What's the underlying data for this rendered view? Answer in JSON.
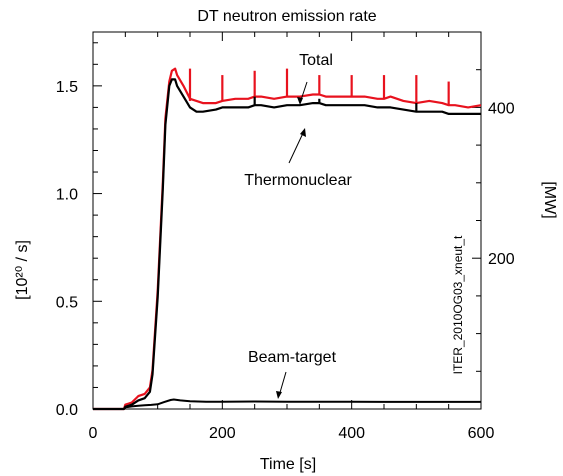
{
  "chart_data": {
    "type": "line",
    "title": "DT neutron emission rate",
    "xlabel": "Time [s]",
    "ylabel_left": "[10²⁰ / s]",
    "ylabel_right": "[MW]",
    "xlim": [
      0,
      600
    ],
    "ylim": [
      0,
      1.75
    ],
    "ylim_right_MW": [
      0,
      500
    ],
    "x_ticks": [
      "0",
      "200",
      "400",
      "600"
    ],
    "y_ticks_left": [
      "0.0",
      "0.5",
      "1.0",
      "1.5"
    ],
    "y_ticks_right": [
      "200",
      "400"
    ],
    "grid": false,
    "watermark": "ITER_2010OG03_xneut_t",
    "colors": {
      "total": "#e8121e",
      "thermonuclear": "#000000",
      "beam_target": "#000000"
    },
    "annotations": [
      {
        "text": "Total",
        "series": "Total"
      },
      {
        "text": "Thermonuclear",
        "series": "Thermonuclear"
      },
      {
        "text": "Beam-target",
        "series": "Beam-target"
      }
    ],
    "series": [
      {
        "name": "Total",
        "x": [
          0,
          48,
          50,
          60,
          70,
          80,
          88,
          92,
          100,
          108,
          112,
          118,
          122,
          127,
          130,
          140,
          150,
          170,
          190,
          200,
          220,
          240,
          250,
          260,
          280,
          300,
          320,
          340,
          350,
          360,
          380,
          400,
          420,
          440,
          450,
          460,
          480,
          500,
          520,
          540,
          550,
          560,
          580,
          600
        ],
        "y": [
          0,
          0,
          0.02,
          0.03,
          0.06,
          0.07,
          0.1,
          0.18,
          0.55,
          1.05,
          1.35,
          1.52,
          1.57,
          1.58,
          1.55,
          1.5,
          1.44,
          1.42,
          1.42,
          1.43,
          1.44,
          1.44,
          1.45,
          1.45,
          1.44,
          1.45,
          1.45,
          1.46,
          1.46,
          1.45,
          1.45,
          1.45,
          1.45,
          1.44,
          1.44,
          1.45,
          1.43,
          1.42,
          1.43,
          1.42,
          1.41,
          1.41,
          1.4,
          1.41
        ]
      },
      {
        "name": "Thermonuclear",
        "x": [
          0,
          48,
          50,
          60,
          70,
          80,
          88,
          92,
          100,
          108,
          112,
          118,
          122,
          127,
          130,
          140,
          150,
          160,
          170,
          190,
          200,
          220,
          240,
          250,
          260,
          280,
          300,
          320,
          340,
          350,
          360,
          380,
          400,
          420,
          440,
          450,
          460,
          480,
          500,
          520,
          540,
          550,
          560,
          580,
          600
        ],
        "y": [
          0,
          0,
          0.01,
          0.02,
          0.04,
          0.05,
          0.08,
          0.16,
          0.52,
          1.02,
          1.32,
          1.5,
          1.53,
          1.53,
          1.5,
          1.45,
          1.4,
          1.38,
          1.38,
          1.39,
          1.4,
          1.4,
          1.4,
          1.41,
          1.41,
          1.4,
          1.41,
          1.41,
          1.42,
          1.42,
          1.41,
          1.41,
          1.41,
          1.41,
          1.4,
          1.4,
          1.4,
          1.39,
          1.38,
          1.38,
          1.38,
          1.37,
          1.37,
          1.37,
          1.37
        ]
      },
      {
        "name": "Beam-target",
        "x": [
          0,
          48,
          50,
          60,
          70,
          80,
          90,
          100,
          110,
          120,
          125,
          135,
          150,
          175,
          200,
          250,
          300,
          350,
          400,
          450,
          500,
          550,
          600
        ],
        "y": [
          0,
          0,
          0.008,
          0.012,
          0.015,
          0.017,
          0.019,
          0.022,
          0.032,
          0.042,
          0.044,
          0.04,
          0.036,
          0.034,
          0.034,
          0.035,
          0.034,
          0.034,
          0.034,
          0.033,
          0.033,
          0.033,
          0.033
        ]
      }
    ],
    "spikes": {
      "Total": [
        {
          "x": 150,
          "base": 1.43,
          "peak": 1.58
        },
        {
          "x": 200,
          "base": 1.43,
          "peak": 1.55
        },
        {
          "x": 250,
          "base": 1.45,
          "peak": 1.57
        },
        {
          "x": 300,
          "base": 1.45,
          "peak": 1.58
        },
        {
          "x": 350,
          "base": 1.46,
          "peak": 1.55
        },
        {
          "x": 400,
          "base": 1.45,
          "peak": 1.55
        },
        {
          "x": 450,
          "base": 1.44,
          "peak": 1.55
        },
        {
          "x": 500,
          "base": 1.42,
          "peak": 1.55
        },
        {
          "x": 550,
          "base": 1.41,
          "peak": 1.52
        }
      ],
      "Thermonuclear": [
        {
          "x": 250,
          "base": 1.41,
          "peak": 1.45
        },
        {
          "x": 350,
          "base": 1.42,
          "peak": 1.44
        },
        {
          "x": 500,
          "base": 1.38,
          "peak": 1.42
        }
      ]
    }
  }
}
